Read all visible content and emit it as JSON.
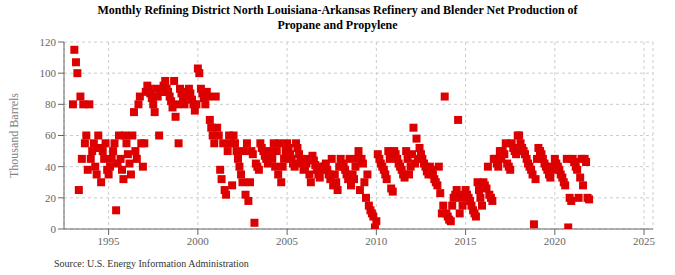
{
  "chart_data": {
    "type": "scatter",
    "title": "Monthly Refining District North Louisiana-Arkansas Refinery and Blender Net Production of\nPropane and Propylene",
    "ylabel": "Thousand Barrels",
    "annotations": [
      "Source: U.S. Energy Information Administration"
    ],
    "color": "#dd0000",
    "marker": "square",
    "grid": true,
    "xlim": [
      1992.5,
      2025.5
    ],
    "ylim": [
      0,
      120
    ],
    "xticks": [
      1995,
      2000,
      2005,
      2010,
      2015,
      2020,
      2025
    ],
    "yticks": [
      0,
      20,
      40,
      60,
      80,
      100,
      120
    ],
    "x": [
      1993.0,
      1993.08,
      1993.17,
      1993.25,
      1993.33,
      1993.42,
      1993.5,
      1993.58,
      1993.67,
      1993.75,
      1993.83,
      1993.92,
      1994.0,
      1994.08,
      1994.17,
      1994.25,
      1994.33,
      1994.42,
      1994.5,
      1994.58,
      1994.67,
      1994.75,
      1994.83,
      1994.92,
      1995.0,
      1995.08,
      1995.17,
      1995.25,
      1995.33,
      1995.42,
      1995.5,
      1995.58,
      1995.67,
      1995.75,
      1995.83,
      1995.92,
      1996.0,
      1996.08,
      1996.17,
      1996.25,
      1996.33,
      1996.42,
      1996.5,
      1996.58,
      1996.67,
      1996.75,
      1996.83,
      1996.92,
      1997.0,
      1997.08,
      1997.17,
      1997.25,
      1997.33,
      1997.42,
      1997.5,
      1997.58,
      1997.67,
      1997.75,
      1997.83,
      1997.92,
      1998.0,
      1998.08,
      1998.17,
      1998.25,
      1998.33,
      1998.42,
      1998.5,
      1998.58,
      1998.67,
      1998.75,
      1998.83,
      1998.92,
      1999.0,
      1999.08,
      1999.17,
      1999.25,
      1999.33,
      1999.42,
      1999.5,
      1999.58,
      1999.67,
      1999.75,
      1999.83,
      1999.92,
      2000.0,
      2000.08,
      2000.17,
      2000.25,
      2000.33,
      2000.42,
      2000.5,
      2000.58,
      2000.67,
      2000.75,
      2000.83,
      2000.92,
      2001.0,
      2001.08,
      2001.17,
      2001.25,
      2001.33,
      2001.42,
      2001.5,
      2001.58,
      2001.67,
      2001.75,
      2001.83,
      2001.92,
      2002.0,
      2002.08,
      2002.17,
      2002.25,
      2002.33,
      2002.42,
      2002.5,
      2002.58,
      2002.67,
      2002.75,
      2002.83,
      2002.92,
      2003.0,
      2003.08,
      2003.17,
      2003.25,
      2003.33,
      2003.42,
      2003.5,
      2003.58,
      2003.67,
      2003.75,
      2003.83,
      2003.92,
      2004.0,
      2004.08,
      2004.17,
      2004.25,
      2004.33,
      2004.42,
      2004.5,
      2004.58,
      2004.67,
      2004.75,
      2004.83,
      2004.92,
      2005.0,
      2005.08,
      2005.17,
      2005.25,
      2005.33,
      2005.42,
      2005.5,
      2005.58,
      2005.67,
      2005.75,
      2005.83,
      2005.92,
      2006.0,
      2006.08,
      2006.17,
      2006.25,
      2006.33,
      2006.42,
      2006.5,
      2006.58,
      2006.67,
      2006.75,
      2006.83,
      2006.92,
      2007.0,
      2007.08,
      2007.17,
      2007.25,
      2007.33,
      2007.42,
      2007.5,
      2007.58,
      2007.67,
      2007.75,
      2007.83,
      2007.92,
      2008.0,
      2008.08,
      2008.17,
      2008.25,
      2008.33,
      2008.42,
      2008.5,
      2008.58,
      2008.67,
      2008.75,
      2008.83,
      2008.92,
      2009.0,
      2009.08,
      2009.17,
      2009.25,
      2009.33,
      2009.42,
      2009.5,
      2009.58,
      2009.67,
      2009.75,
      2009.83,
      2009.92,
      2010.0,
      2010.08,
      2010.17,
      2010.25,
      2010.33,
      2010.42,
      2010.5,
      2010.58,
      2010.67,
      2010.75,
      2010.83,
      2010.92,
      2011.0,
      2011.08,
      2011.17,
      2011.25,
      2011.33,
      2011.42,
      2011.5,
      2011.58,
      2011.67,
      2011.75,
      2011.83,
      2011.92,
      2012.0,
      2012.08,
      2012.17,
      2012.25,
      2012.33,
      2012.42,
      2012.5,
      2012.58,
      2012.67,
      2012.75,
      2012.83,
      2012.92,
      2013.0,
      2013.08,
      2013.17,
      2013.25,
      2013.33,
      2013.42,
      2013.5,
      2013.58,
      2013.67,
      2013.75,
      2013.83,
      2013.92,
      2014.0,
      2014.08,
      2014.17,
      2014.25,
      2014.33,
      2014.42,
      2014.5,
      2014.58,
      2014.67,
      2014.75,
      2014.83,
      2014.92,
      2015.0,
      2015.08,
      2015.17,
      2015.25,
      2015.33,
      2015.42,
      2015.5,
      2015.58,
      2015.67,
      2015.75,
      2015.83,
      2015.92,
      2016.0,
      2016.08,
      2016.17,
      2016.25,
      2016.33,
      2016.42,
      2016.5,
      2016.58,
      2016.67,
      2016.75,
      2016.83,
      2016.92,
      2017.0,
      2017.08,
      2017.17,
      2017.25,
      2017.33,
      2017.42,
      2017.5,
      2017.58,
      2017.67,
      2017.75,
      2017.83,
      2017.92,
      2018.0,
      2018.08,
      2018.17,
      2018.25,
      2018.33,
      2018.42,
      2018.5,
      2018.58,
      2018.67,
      2018.75,
      2018.83,
      2018.92,
      2019.0,
      2019.08,
      2019.17,
      2019.25,
      2019.33,
      2019.42,
      2019.5,
      2019.58,
      2019.67,
      2019.75,
      2019.83,
      2019.92,
      2020.0,
      2020.08,
      2020.17,
      2020.25,
      2020.33,
      2020.42,
      2020.5,
      2020.58,
      2020.67,
      2020.75,
      2020.83,
      2020.92,
      2021.0,
      2021.08,
      2021.17,
      2021.25,
      2021.33,
      2021.42,
      2021.5,
      2021.58,
      2021.67,
      2021.75,
      2021.83,
      2021.92
    ],
    "values": [
      80,
      115,
      107,
      100,
      25,
      85,
      45,
      80,
      55,
      60,
      38,
      80,
      45,
      50,
      55,
      40,
      35,
      60,
      52,
      30,
      50,
      45,
      55,
      38,
      35,
      40,
      45,
      50,
      55,
      12,
      42,
      60,
      45,
      38,
      32,
      60,
      55,
      48,
      42,
      35,
      60,
      75,
      50,
      45,
      80,
      85,
      55,
      40,
      55,
      88,
      92,
      90,
      87,
      84,
      80,
      75,
      90,
      85,
      60,
      88,
      88,
      92,
      95,
      90,
      88,
      85,
      82,
      78,
      95,
      72,
      80,
      55,
      90,
      87,
      84,
      80,
      85,
      88,
      90,
      87,
      83,
      80,
      76,
      80,
      103,
      100,
      90,
      87,
      84,
      80,
      88,
      85,
      70,
      65,
      60,
      55,
      85,
      65,
      60,
      38,
      32,
      55,
      25,
      22,
      50,
      60,
      55,
      28,
      60,
      55,
      50,
      45,
      40,
      35,
      30,
      50,
      22,
      55,
      18,
      30,
      50,
      48,
      4,
      42,
      40,
      38,
      55,
      52,
      50,
      47,
      45,
      42,
      48,
      50,
      45,
      55,
      40,
      50,
      35,
      55,
      30,
      40,
      45,
      50,
      55,
      52,
      48,
      45,
      42,
      40,
      55,
      52,
      48,
      45,
      42,
      38,
      40,
      42,
      45,
      35,
      30,
      47,
      44,
      41,
      38,
      35,
      33,
      40,
      38,
      40,
      42,
      38,
      35,
      32,
      45,
      28,
      35,
      30,
      25,
      40,
      45,
      42,
      40,
      38,
      35,
      32,
      45,
      28,
      35,
      32,
      40,
      45,
      50,
      25,
      45,
      42,
      30,
      20,
      35,
      15,
      12,
      10,
      8,
      1,
      5,
      48,
      45,
      42,
      40,
      38,
      35,
      32,
      50,
      45,
      26,
      24,
      50,
      48,
      45,
      42,
      40,
      38,
      35,
      33,
      50,
      45,
      35,
      40,
      48,
      65,
      42,
      58,
      45,
      52,
      48,
      45,
      42,
      40,
      37,
      35,
      40,
      38,
      35,
      32,
      30,
      28,
      40,
      23,
      10,
      15,
      85,
      10,
      8,
      6,
      5,
      15,
      20,
      22,
      25,
      70,
      10,
      20,
      15,
      22,
      25,
      22,
      20,
      18,
      15,
      12,
      10,
      8,
      30,
      25,
      20,
      15,
      30,
      28,
      26,
      40,
      22,
      20,
      18,
      45,
      45,
      42,
      40,
      50,
      45,
      50,
      48,
      55,
      42,
      40,
      38,
      55,
      52,
      50,
      48,
      60,
      60,
      55,
      52,
      50,
      48,
      45,
      42,
      40,
      38,
      35,
      3,
      32,
      45,
      52,
      50,
      48,
      45,
      42,
      40,
      38,
      35,
      33,
      40,
      38,
      45,
      42,
      40,
      38,
      35,
      33,
      30,
      28,
      45,
      1,
      20,
      18,
      45,
      43,
      40,
      38,
      20,
      33,
      45,
      28,
      45,
      43,
      20,
      19
    ]
  }
}
